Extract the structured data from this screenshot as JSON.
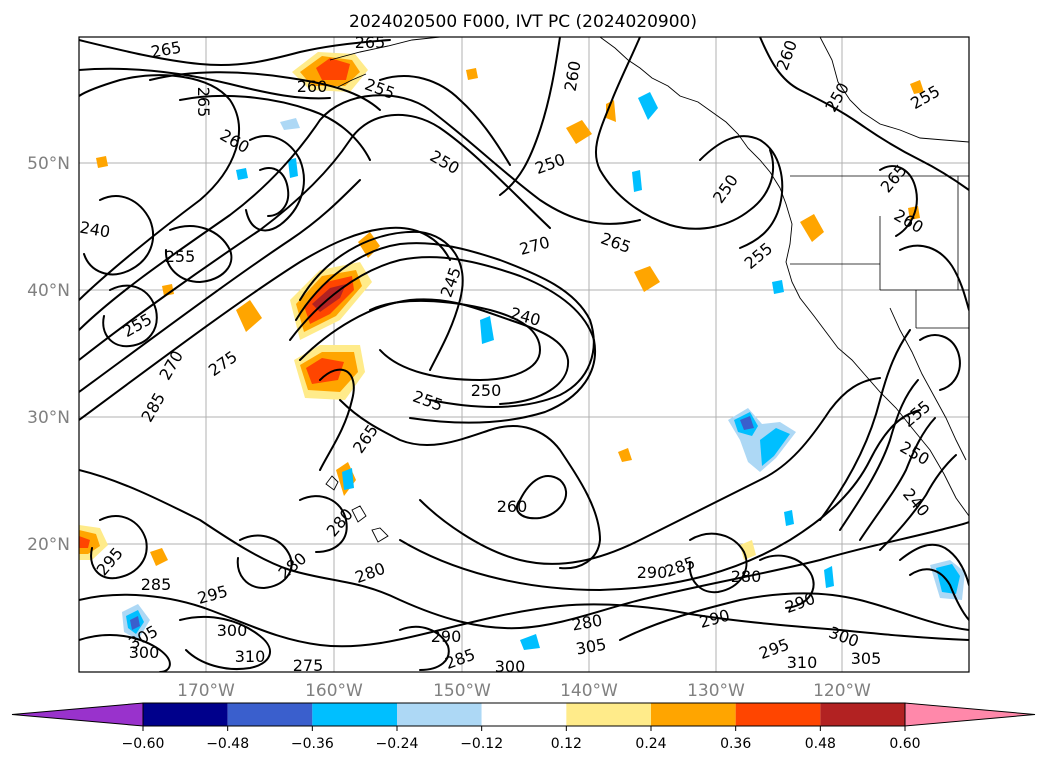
{
  "title": "2024020500 F000, IVT PC (2024020900)",
  "lat_ticks": [
    "50°N",
    "40°N",
    "30°N",
    "20°N"
  ],
  "lon_ticks": [
    "170°W",
    "160°W",
    "150°W",
    "140°W",
    "130°W",
    "120°W"
  ],
  "colorbar": {
    "ticks": [
      "−0.60",
      "−0.48",
      "−0.36",
      "−0.24",
      "−0.12",
      "0.12",
      "0.24",
      "0.36",
      "0.48",
      "0.60"
    ],
    "colors": [
      "#9932cc",
      "#00008b",
      "#3a5fcd",
      "#00bfff",
      "#add8f5",
      "#ffffff",
      "#ffeb8a",
      "#ffa500",
      "#ff4500",
      "#b22222",
      "#ff88aa"
    ]
  },
  "contour_labels": [
    "265",
    "265",
    "255",
    "265",
    "260",
    "250",
    "250",
    "260",
    "260",
    "250",
    "255",
    "260",
    "250",
    "265",
    "260",
    "255",
    "270",
    "265",
    "255",
    "245",
    "240",
    "240",
    "255",
    "270",
    "275",
    "285",
    "250",
    "255",
    "265",
    "255",
    "250",
    "240",
    "260",
    "280",
    "280",
    "280",
    "280",
    "290",
    "285",
    "295",
    "285",
    "280",
    "290",
    "300",
    "295",
    "300",
    "305",
    "310",
    "305",
    "275",
    "290",
    "285",
    "300",
    "295",
    "290",
    "300",
    "310",
    "305"
  ]
}
